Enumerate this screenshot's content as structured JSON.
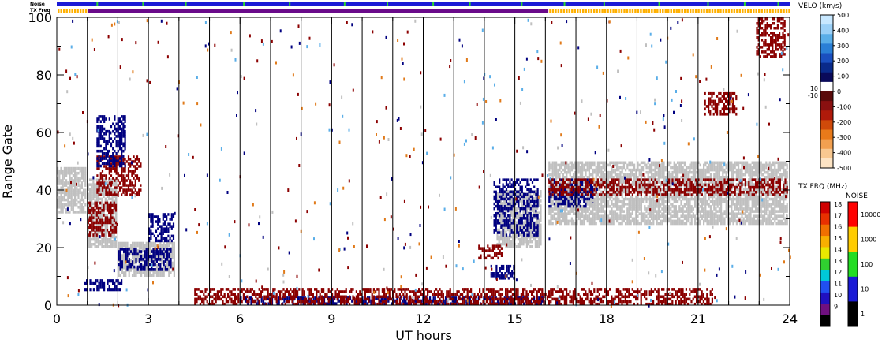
{
  "chart_data": {
    "type": "heatmap",
    "xlabel": "UT hours",
    "ylabel": "Range Gate",
    "xlim": [
      0,
      24
    ],
    "ylim": [
      0,
      100
    ],
    "x_ticks": [
      0,
      3,
      6,
      9,
      12,
      15,
      18,
      21,
      24
    ],
    "y_ticks": [
      0,
      20,
      40,
      60,
      80,
      100
    ],
    "scan_boundaries_hours": [
      1,
      2,
      3,
      4,
      5,
      6,
      7,
      8,
      9,
      10,
      11,
      12,
      13,
      14,
      15,
      16,
      17,
      18,
      19,
      20,
      21,
      22,
      23
    ],
    "strips": {
      "noise_label": "Noise",
      "txfreq_label": "TX Freq",
      "noise_colors": {
        "base": "#1a1ad6",
        "spike": "#2bd62b"
      },
      "noise_spikes_hours": [
        1.3,
        2.8,
        4.2,
        6.1,
        7.6,
        9.4,
        10.8,
        12.3,
        13.5,
        15.2,
        16.6,
        17.9,
        19.7,
        21.3,
        22.5,
        23.6
      ],
      "txfreq_segments": [
        {
          "start": 0,
          "end": 1.0,
          "color": "#ffb000"
        },
        {
          "start": 1.0,
          "end": 16.1,
          "color": "#6a0a8a"
        },
        {
          "start": 16.1,
          "end": 24,
          "color": "#ffb000"
        }
      ]
    },
    "velocity_colorbar": {
      "title": "VELO (km/s)",
      "ticks": [
        500,
        400,
        300,
        200,
        100,
        0,
        -100,
        -200,
        -300,
        -400,
        -500
      ],
      "ground_scatter_labels": [
        "10",
        "-10"
      ],
      "colors": [
        "#c8e8ff",
        "#9bd0f7",
        "#5aaee8",
        "#2a7fd6",
        "#1a4fbf",
        "#0a2a8a",
        "#0a0a5a",
        "#ffffff",
        "#5a0a0a",
        "#8a1010",
        "#b01a0a",
        "#d04a0a",
        "#e87a1a",
        "#f2a050",
        "#f8c890",
        "#fde4c4"
      ]
    },
    "txfreq_colorbar": {
      "title": "TX FRQ (MHz)",
      "ticks": [
        18,
        17,
        16,
        15,
        14,
        13,
        12,
        11,
        10,
        9
      ],
      "colors": [
        "#d00000",
        "#e83000",
        "#f07000",
        "#f8b000",
        "#e8e800",
        "#30d030",
        "#00c8d8",
        "#2050f0",
        "#2010c0",
        "#701080",
        "#000000"
      ]
    },
    "noise_colorbar": {
      "title": "NOISE",
      "ticks": [
        10000,
        1000,
        100,
        10,
        1
      ],
      "colors": [
        "#ff0000",
        "#ffcc00",
        "#22dd22",
        "#1a1ad6",
        "#000000"
      ]
    },
    "scatter_regions": [
      {
        "kind": "ground",
        "color": "#c0c0c0",
        "x0": 0.0,
        "x1": 1.0,
        "y0": 32,
        "y1": 48
      },
      {
        "kind": "ground",
        "color": "#c0c0c0",
        "x0": 1.0,
        "x1": 2.0,
        "y0": 20,
        "y1": 44
      },
      {
        "kind": "ground",
        "color": "#c0c0c0",
        "x0": 2.0,
        "x1": 3.9,
        "y0": 10,
        "y1": 22
      },
      {
        "kind": "ground",
        "color": "#c0c0c0",
        "x0": 16.1,
        "x1": 24.0,
        "y0": 28,
        "y1": 50
      },
      {
        "kind": "ground",
        "color": "#c0c0c0",
        "x0": 14.4,
        "x1": 15.9,
        "y0": 20,
        "y1": 40
      },
      {
        "kind": "negative",
        "color": "#8b0000",
        "x0": 1.0,
        "x1": 2.0,
        "y0": 24,
        "y1": 36
      },
      {
        "kind": "negative",
        "color": "#8b0000",
        "x0": 1.3,
        "x1": 2.8,
        "y0": 38,
        "y1": 52
      },
      {
        "kind": "negative",
        "color": "#8b0000",
        "x0": 13.8,
        "x1": 14.6,
        "y0": 16,
        "y1": 21
      },
      {
        "kind": "positive",
        "color": "#000080",
        "x0": 1.3,
        "x1": 2.3,
        "y0": 48,
        "y1": 66
      },
      {
        "kind": "positive",
        "color": "#000080",
        "x0": 2.0,
        "x1": 3.8,
        "y0": 12,
        "y1": 20
      },
      {
        "kind": "positive",
        "color": "#000080",
        "x0": 3.0,
        "x1": 3.9,
        "y0": 22,
        "y1": 32
      },
      {
        "kind": "positive",
        "color": "#000080",
        "x0": 0.9,
        "x1": 2.2,
        "y0": 5,
        "y1": 9
      },
      {
        "kind": "positive",
        "color": "#000080",
        "x0": 14.3,
        "x1": 15.8,
        "y0": 24,
        "y1": 44
      },
      {
        "kind": "positive",
        "color": "#000080",
        "x0": 14.2,
        "x1": 15.0,
        "y0": 9,
        "y1": 14
      },
      {
        "kind": "positive",
        "color": "#000080",
        "x0": 16.1,
        "x1": 17.6,
        "y0": 34,
        "y1": 44
      },
      {
        "kind": "positive",
        "color": "#000080",
        "x0": 6.0,
        "x1": 16.0,
        "y0": 0,
        "y1": 3
      },
      {
        "kind": "negative",
        "color": "#8b0000",
        "x0": 4.5,
        "x1": 21.5,
        "y0": 0,
        "y1": 6
      },
      {
        "kind": "negative",
        "color": "#8b0000",
        "x0": 16.1,
        "x1": 24.0,
        "y0": 38,
        "y1": 44
      },
      {
        "kind": "negative",
        "color": "#8b0000",
        "x0": 21.2,
        "x1": 22.3,
        "y0": 66,
        "y1": 74
      },
      {
        "kind": "negative",
        "color": "#8b0000",
        "x0": 22.9,
        "x1": 23.9,
        "y0": 86,
        "y1": 100
      }
    ]
  }
}
